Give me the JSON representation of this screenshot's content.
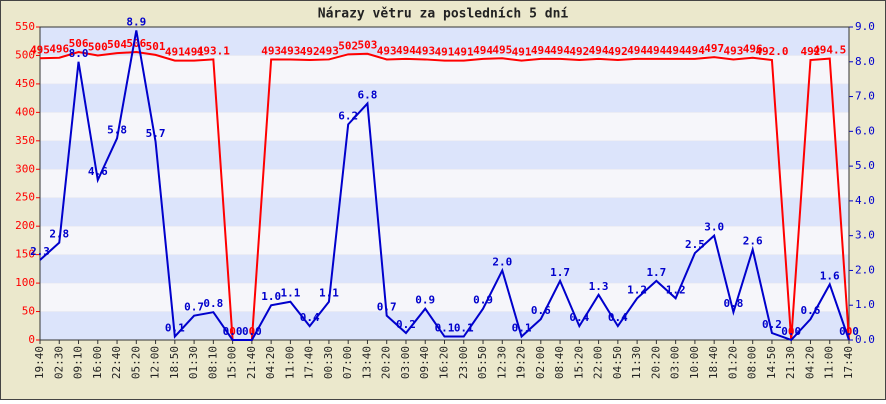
{
  "chart_data": {
    "type": "line",
    "title": "Nárazy větru za posledních 5 dní",
    "categories": [
      "19:40",
      "02:30",
      "09:10",
      "16:00",
      "22:40",
      "05:20",
      "12:00",
      "18:50",
      "01:30",
      "08:10",
      "15:00",
      "21:40",
      "04:20",
      "11:00",
      "17:40",
      "00:30",
      "07:00",
      "13:40",
      "20:20",
      "03:00",
      "09:40",
      "16:20",
      "23:00",
      "05:50",
      "12:30",
      "19:20",
      "02:00",
      "08:40",
      "15:20",
      "22:00",
      "04:50",
      "11:30",
      "20:20",
      "03:00",
      "10:00",
      "18:40",
      "01:20",
      "08:00",
      "14:50",
      "21:30",
      "04:20",
      "11:00",
      "17:40"
    ],
    "series": [
      {
        "color": "#ff0000",
        "values": [
          495,
          496,
          506,
          500,
          504,
          506,
          501,
          491,
          491,
          493.1,
          0,
          0,
          493,
          493,
          492,
          493,
          502,
          503,
          493,
          494,
          493,
          491,
          491,
          494,
          495,
          491,
          494,
          494,
          492,
          494,
          492,
          494,
          494,
          494,
          494,
          497,
          493,
          496,
          492,
          0,
          492,
          494.5,
          0
        ],
        "value_labels": [
          "495",
          "496",
          "506",
          "500",
          "504",
          "506",
          "501",
          "491",
          "491",
          "493.1",
          "0",
          "0",
          "493",
          "493",
          "492",
          "493",
          "502",
          "503",
          "493",
          "494",
          "493",
          "491",
          "491",
          "494",
          "495",
          "491",
          "494",
          "494",
          "492",
          "494",
          "492",
          "494",
          "494",
          "494",
          "494",
          "497",
          "493",
          "496",
          "492.0",
          "0",
          "492",
          "494.5",
          "0"
        ]
      },
      {
        "color": "#0000cc",
        "axis": "y2",
        "values": [
          2.3,
          2.8,
          8.0,
          4.6,
          5.8,
          8.9,
          5.7,
          0.1,
          0.7,
          0.8,
          0.0,
          0.0,
          1.0,
          1.1,
          0.4,
          1.1,
          6.2,
          6.8,
          0.7,
          0.2,
          0.9,
          0.1,
          0.1,
          0.9,
          2.0,
          0.1,
          0.6,
          1.7,
          0.4,
          1.3,
          0.4,
          1.2,
          1.7,
          1.2,
          2.5,
          3.0,
          0.8,
          2.6,
          0.2,
          0.0,
          0.6,
          1.6,
          0.0
        ],
        "value_labels": [
          "2.3",
          "2.8",
          "8.0",
          "4.6",
          "5.8",
          "8.9",
          "5.7",
          "0.1",
          "0.7",
          "0.8",
          "0.0",
          "0.0",
          "1.0",
          "1.1",
          "0.4",
          "1.1",
          "6.2",
          "6.8",
          "0.7",
          "0.2",
          "0.9",
          "0.1",
          "0.1",
          "0.9",
          "2.0",
          "0.1",
          "0.6",
          "1.7",
          "0.4",
          "1.3",
          "0.4",
          "1.2",
          "1.7",
          "1.2",
          "2.5",
          "3.0",
          "0.8",
          "2.6",
          "0.2",
          "0.0",
          "0.6",
          "1.6",
          "0.0"
        ]
      }
    ],
    "ylim": [
      0,
      550
    ],
    "yticks": [
      0,
      50,
      100,
      150,
      200,
      250,
      300,
      350,
      400,
      450,
      500,
      550
    ],
    "y2lim": [
      0,
      9
    ],
    "y2ticks": [
      {
        "value": 0,
        "label": "0.0"
      },
      {
        "value": 1,
        "label": "1.0"
      },
      {
        "value": 2,
        "label": "2.0"
      },
      {
        "value": 3,
        "label": "3.0"
      },
      {
        "value": 4,
        "label": "4.0"
      },
      {
        "value": 5,
        "label": "5.0"
      },
      {
        "value": 6,
        "label": "6.0"
      },
      {
        "value": 7,
        "label": "7.0"
      },
      {
        "value": 8,
        "label": "8.0"
      },
      {
        "value": 9,
        "label": "9.0"
      }
    ],
    "grid": true
  }
}
